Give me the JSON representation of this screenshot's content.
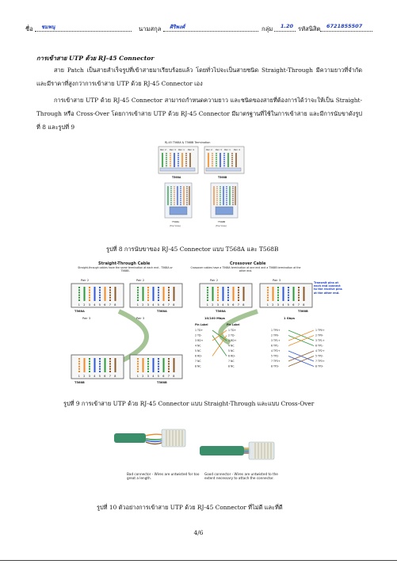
{
  "header": {
    "name_label": "ชื่อ",
    "name_value": "ชมพนุ",
    "surname_label": "นามสกุล",
    "surname_value": "ศิริพงศ์",
    "group_label": "กลุ่ม",
    "group_value": "1.20",
    "student_id_label": "รหัสนิสิต",
    "student_id_value": "6721855507"
  },
  "section_title": "การเข้าสาย UTP ด้วย RJ-45 Connector",
  "paragraphs": [
    "สาย Patch เป็นสายสำเร็จรูปที่เข้าสายมาเรียบร้อยแล้ว โดยทั่วไปจะเป็นสายชนิด Straight-Through มีความยาวที่จำกัด และมีราคาที่สูงกว่าการเข้าสาย UTP ด้วย RJ-45 Connector เอง",
    "การเข้าสาย UTP ด้วย RJ-45 Connector สามารถกำหนดความยาว และชนิดของสายที่ต้องการได้ว่าจะให้เป็น Straight-Through หรือ Cross-Over โดยการเข้าสาย UTP ด้วย RJ-45 Connector มีมาตรฐานที่ใช้ในการเข้าสาย และมีการนับขาดังรูปที่ 8 และรูปที่ 9"
  ],
  "figure8": {
    "title": "RJ-45 T568A & T568B Termination",
    "pair_labels": [
      "Pair 2",
      "Pair 3",
      "Pair 1",
      "Pair 4"
    ],
    "left_name": "T568A",
    "right_name": "T568B",
    "top_view": "(Top View)",
    "caption": "รูปที่ 8 การนับขาของ RJ-45 Connector แบบ T568A และ T568B"
  },
  "figure9": {
    "straight_title": "Straight-Through Cable",
    "straight_desc": "Straight-through cables have the same termination at each end - T568A or T568B.",
    "cross_title": "Crossover Cable",
    "cross_desc": "Crossover cables have a T568A termination at one end and a T568B termination at the other end.",
    "pair_labels": [
      "Pair 2",
      "Pair 3",
      "Pair 1",
      "Pair 4"
    ],
    "pins": [
      "1",
      "2",
      "3",
      "4",
      "5",
      "6",
      "7",
      "8"
    ],
    "label_t568a": "T568A",
    "label_t568b": "T568B",
    "transmit_note": "Transmit pins at each end connect to the receive pins at the other end.",
    "speed_100": "10/100 Mbps",
    "speed_1g": "1 Gbps",
    "pin_label_header": "Pin Label",
    "left_pin_labels": [
      "1 TD+",
      "2 TD-",
      "3 RD+",
      "4 NC",
      "5 NC",
      "6 RD-",
      "7 NC",
      "8 NC"
    ],
    "right_pin_labels": [
      "1 TD+",
      "2 TD-",
      "3 RD+",
      "4 NC",
      "5 NC",
      "6 RD-",
      "7 NC",
      "8 NC"
    ],
    "left_gig_labels": [
      "1 TP0+",
      "2 TP0-",
      "3 TP1+",
      "6 TP1-",
      "4 TP2+",
      "5 TP2-",
      "7 TP3+",
      "8 TP3-"
    ],
    "right_gig_labels": [
      "1 TP0+",
      "2 TP0-",
      "3 TP1+",
      "6 TP1-",
      "4 TP2+",
      "5 TP2-",
      "7 TP3+",
      "8 TP3-"
    ],
    "caption": "รูปที่ 9 การเข้าสาย UTP ด้วย RJ-45 Connector แบบ Straight-Through และแบบ Cross-Over"
  },
  "figure10": {
    "bad_text": "Bad connector - Wires are untwisted for too great a length.",
    "good_text": "Good connector - Wires are untwisted to the extent necessary to attach the connector.",
    "caption": "รูปที่ 10 ตัวอย่างการเข้าสาย UTP ด้วย RJ-45 Connector ที่ไม่ดี และที่ดี"
  },
  "page_number": "4/6",
  "colors": {
    "handwriting": "#1d3fbf",
    "orange": "#f08a24",
    "green": "#2e9a3c",
    "blue": "#2f58d8",
    "brown": "#8b5a2b",
    "cable_green": "#3a8f6a",
    "arc_green": "#8fb57a",
    "note_blue": "#2044c8"
  }
}
